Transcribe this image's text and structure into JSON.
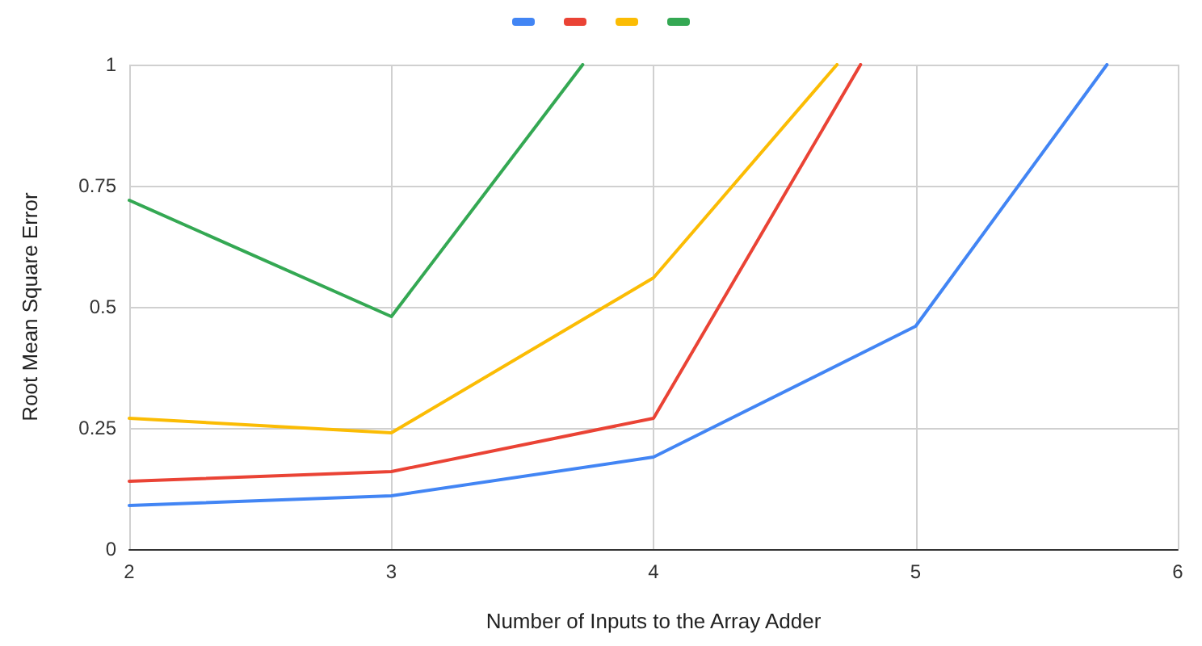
{
  "chart_data": {
    "type": "line",
    "xlabel": "Number of Inputs to the Array Adder",
    "ylabel": "Root Mean Square Error",
    "xlim": [
      2,
      6
    ],
    "xticks": [
      2,
      3,
      4,
      5,
      6
    ],
    "ylim": [
      0,
      1
    ],
    "yticks": [
      0,
      0.25,
      0.5,
      0.75,
      1
    ],
    "grid": true,
    "marker": "none",
    "line_style": "solid",
    "series": [
      {
        "color": "#4285f4",
        "x": [
          2,
          3,
          4,
          5,
          5.73
        ],
        "values": [
          0.09,
          0.11,
          0.19,
          0.46,
          1
        ]
      },
      {
        "color": "#ea4335",
        "x": [
          2,
          3,
          4,
          4.79
        ],
        "values": [
          0.14,
          0.16,
          0.27,
          1
        ]
      },
      {
        "color": "#fbbc04",
        "x": [
          2,
          3,
          4,
          4.7
        ],
        "values": [
          0.27,
          0.24,
          0.56,
          1
        ]
      },
      {
        "color": "#34a853",
        "x": [
          2,
          3,
          3.73
        ],
        "values": [
          0.72,
          0.48,
          1
        ]
      }
    ]
  }
}
